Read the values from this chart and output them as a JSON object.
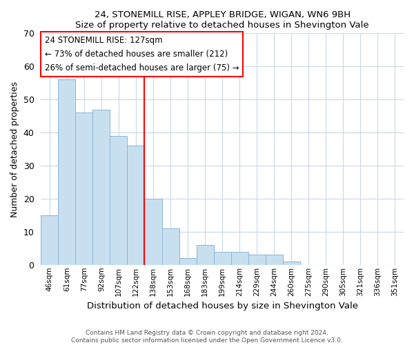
{
  "title1": "24, STONEMILL RISE, APPLEY BRIDGE, WIGAN, WN6 9BH",
  "title2": "Size of property relative to detached houses in Shevington Vale",
  "xlabel": "Distribution of detached houses by size in Shevington Vale",
  "ylabel": "Number of detached properties",
  "bar_labels": [
    "46sqm",
    "61sqm",
    "77sqm",
    "92sqm",
    "107sqm",
    "122sqm",
    "138sqm",
    "153sqm",
    "168sqm",
    "183sqm",
    "199sqm",
    "214sqm",
    "229sqm",
    "244sqm",
    "260sqm",
    "275sqm",
    "290sqm",
    "305sqm",
    "321sqm",
    "336sqm",
    "351sqm"
  ],
  "bar_values": [
    15,
    56,
    46,
    47,
    39,
    36,
    20,
    11,
    2,
    6,
    4,
    4,
    3,
    3,
    1,
    0,
    0,
    0,
    0,
    0,
    0
  ],
  "bar_color": "#c8dff0",
  "bar_edge_color": "#8cb4d2",
  "ref_line_x": 5.5,
  "ref_line_color": "red",
  "ylim": [
    0,
    70
  ],
  "yticks": [
    0,
    10,
    20,
    30,
    40,
    50,
    60,
    70
  ],
  "annotation_line1": "24 STONEMILL RISE: 127sqm",
  "annotation_line2": "← 73% of detached houses are smaller (212)",
  "annotation_line3": "26% of semi-detached houses are larger (75) →",
  "footer1": "Contains HM Land Registry data © Crown copyright and database right 2024.",
  "footer2": "Contains public sector information licensed under the Open Government Licence v3.0."
}
